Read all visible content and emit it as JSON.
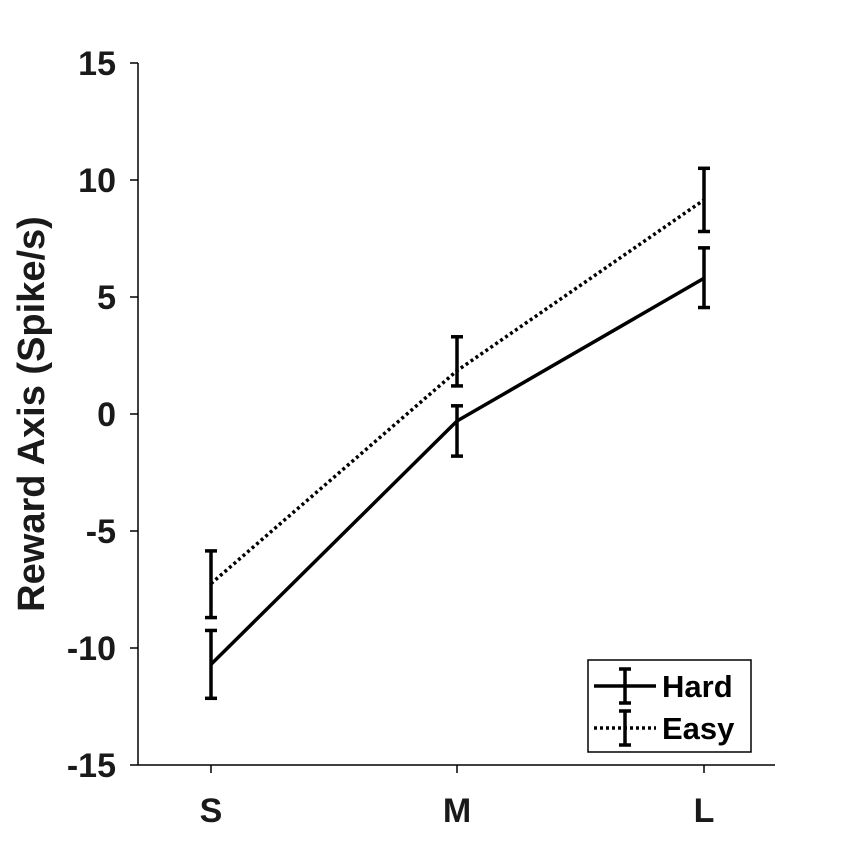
{
  "chart_data": {
    "type": "line",
    "title": "",
    "xlabel": "",
    "ylabel": "Reward Axis (Spike/s)",
    "categories": [
      "S",
      "M",
      "L"
    ],
    "ylim": [
      -15,
      15
    ],
    "yticks": [
      15,
      10,
      5,
      0,
      -5,
      -10,
      -15
    ],
    "ytick_labels": [
      "15",
      "10",
      "5",
      "0",
      "-5",
      "-10",
      "-15"
    ],
    "grid": false,
    "legend_position": "bottom-right",
    "series": [
      {
        "name": "Hard",
        "line_style": "solid",
        "color": "#000000",
        "values": [
          -10.7,
          -0.3,
          5.8
        ],
        "err_lower": [
          1.45,
          1.5,
          1.25
        ],
        "err_upper": [
          1.45,
          0.65,
          1.3
        ]
      },
      {
        "name": "Easy",
        "line_style": "dotted",
        "color": "#000000",
        "values": [
          -7.25,
          1.85,
          9.15
        ],
        "err_lower": [
          1.45,
          0.65,
          1.35
        ],
        "err_upper": [
          1.4,
          1.45,
          1.35
        ]
      }
    ]
  }
}
